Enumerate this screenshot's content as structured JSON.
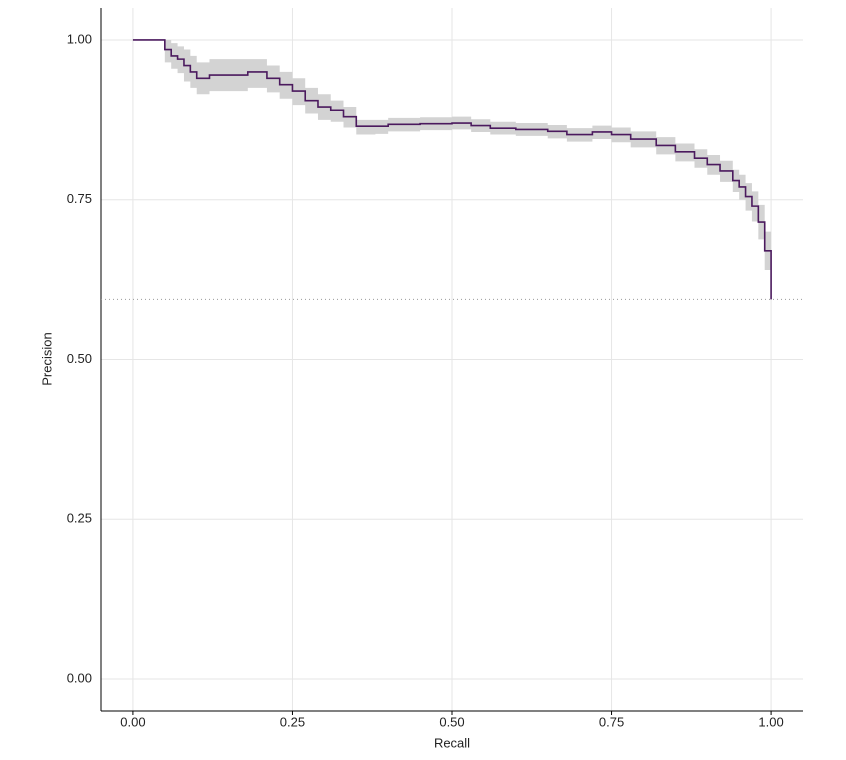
{
  "chart_data": {
    "type": "line",
    "step": true,
    "x_label": "Recall",
    "y_label": "Precision",
    "x": [
      0,
      0.05,
      0.06,
      0.07,
      0.08,
      0.09,
      0.1,
      0.12,
      0.15,
      0.18,
      0.21,
      0.23,
      0.25,
      0.27,
      0.29,
      0.31,
      0.33,
      0.35,
      0.38,
      0.4,
      0.45,
      0.5,
      0.53,
      0.56,
      0.6,
      0.65,
      0.68,
      0.72,
      0.75,
      0.78,
      0.82,
      0.85,
      0.88,
      0.9,
      0.92,
      0.94,
      0.95,
      0.96,
      0.97,
      0.98,
      0.99,
      1.0
    ],
    "y": [
      1,
      0.985,
      0.975,
      0.97,
      0.96,
      0.95,
      0.94,
      0.945,
      0.945,
      0.95,
      0.94,
      0.93,
      0.92,
      0.905,
      0.895,
      0.89,
      0.88,
      0.865,
      0.865,
      0.868,
      0.869,
      0.87,
      0.866,
      0.862,
      0.86,
      0.857,
      0.852,
      0.856,
      0.852,
      0.845,
      0.835,
      0.825,
      0.815,
      0.805,
      0.795,
      0.78,
      0.77,
      0.755,
      0.74,
      0.715,
      0.67,
      0.594
    ],
    "upper": [
      1,
      1.0,
      0.995,
      0.99,
      0.985,
      0.975,
      0.965,
      0.97,
      0.97,
      0.97,
      0.96,
      0.95,
      0.94,
      0.925,
      0.915,
      0.905,
      0.895,
      0.875,
      0.875,
      0.878,
      0.879,
      0.88,
      0.876,
      0.872,
      0.87,
      0.867,
      0.862,
      0.866,
      0.863,
      0.857,
      0.848,
      0.838,
      0.829,
      0.82,
      0.811,
      0.797,
      0.789,
      0.776,
      0.763,
      0.742,
      0.7,
      0.64
    ],
    "lower": [
      1,
      0.965,
      0.955,
      0.948,
      0.935,
      0.925,
      0.915,
      0.92,
      0.92,
      0.925,
      0.918,
      0.908,
      0.898,
      0.885,
      0.875,
      0.872,
      0.863,
      0.852,
      0.853,
      0.857,
      0.859,
      0.86,
      0.856,
      0.852,
      0.85,
      0.846,
      0.841,
      0.845,
      0.84,
      0.832,
      0.821,
      0.81,
      0.8,
      0.789,
      0.778,
      0.762,
      0.75,
      0.733,
      0.716,
      0.688,
      0.64,
      0.56
    ],
    "color": "#4b1a5e",
    "band_color": "#d3d3d3",
    "baseline": 0.594,
    "xlim": [
      -0.05,
      1.05
    ],
    "ylim": [
      -0.05,
      1.05
    ],
    "xticks": [
      {
        "value": 0,
        "label": "0.00"
      },
      {
        "value": 0.25,
        "label": "0.25"
      },
      {
        "value": 0.5,
        "label": "0.50"
      },
      {
        "value": 0.75,
        "label": "0.75"
      },
      {
        "value": 1,
        "label": "1.00"
      }
    ],
    "yticks": [
      {
        "value": 0,
        "label": "0.00"
      },
      {
        "value": 0.25,
        "label": "0.25"
      },
      {
        "value": 0.5,
        "label": "0.50"
      },
      {
        "value": 0.75,
        "label": "0.75"
      },
      {
        "value": 1,
        "label": "1.00"
      }
    ],
    "grid": true
  }
}
